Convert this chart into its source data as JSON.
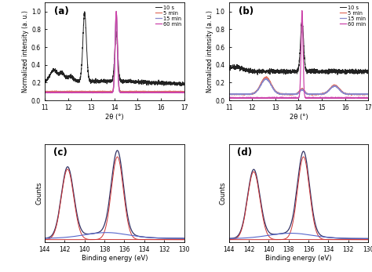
{
  "fig_bg": "#ffffff",
  "panel_bg": "#ffffff",
  "xrd_xlim": [
    11,
    17
  ],
  "xrd_ylim": [
    0.0,
    1.1
  ],
  "xrd_xlabel": "2θ (°)",
  "xrd_ylabel": "Normalized intensity (a. u.)",
  "xrd_yticks": [
    0.0,
    0.2,
    0.4,
    0.6,
    0.8,
    1.0
  ],
  "xrd_xticks": [
    11,
    12,
    13,
    14,
    15,
    16,
    17
  ],
  "legend_labels": [
    "10 s",
    "5 min",
    "15 min",
    "60 min"
  ],
  "legend_colors": [
    "#222222",
    "#e07060",
    "#8888cc",
    "#cc44aa"
  ],
  "xps_xlabel": "Binding energy (eV)",
  "xps_ylabel": "Counts",
  "xps_xticks": [
    144,
    142,
    140,
    138,
    136,
    134,
    132,
    130
  ],
  "panel_labels": [
    "(a)",
    "(b)",
    "(c)",
    "(d)"
  ],
  "xps_total_color": "#333366",
  "xps_peak_color": "#cc3333",
  "xps_bg_color": "#5566cc"
}
